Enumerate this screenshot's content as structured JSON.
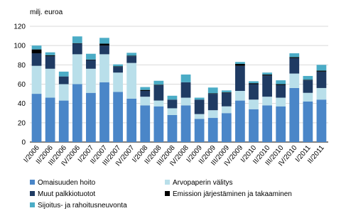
{
  "chart_data": {
    "type": "stacked-bar",
    "y_label": "milj. euroa",
    "categories": [
      "I/2006",
      "II/2006",
      "III/2006",
      "IV/2006",
      "I/2007",
      "II/2007",
      "III/2007",
      "IV/2007",
      "I/2008",
      "II/2008",
      "III/2008",
      "IV/2008",
      "I/2009",
      "II/2009",
      "III/2009",
      "IV/2009",
      "I/2010",
      "II/2010",
      "III/2010",
      "IV/2010",
      "I/2011",
      "II/2011"
    ],
    "series": [
      {
        "name": "Omaisuuden hoito",
        "color": "#4a86c8",
        "values": [
          50,
          46,
          43,
          60,
          51,
          62,
          52,
          45,
          38,
          37,
          28,
          38,
          24,
          25,
          30,
          43,
          34,
          38,
          37,
          56,
          42,
          44
        ]
      },
      {
        "name": "Arvopaperin välitys",
        "color": "#b9dfea",
        "values": [
          29,
          30,
          17,
          31,
          25,
          29,
          20,
          37,
          9,
          6,
          7,
          8,
          5,
          8,
          7,
          10,
          10,
          9,
          9,
          15,
          9,
          12
        ]
      },
      {
        "name": "Muut palkkiotuotot",
        "color": "#1f3b63",
        "values": [
          13,
          13,
          8,
          11,
          9,
          9,
          6,
          7,
          6,
          16,
          9,
          16,
          15,
          17,
          14,
          26,
          16,
          22,
          13,
          16,
          13,
          17
        ]
      },
      {
        "name": "Emission järjestäminen ja takaaminen",
        "color": "#000000",
        "values": [
          4,
          1,
          0,
          0.5,
          0.5,
          2,
          0.5,
          0.5,
          1,
          0.5,
          0,
          0,
          0,
          0.5,
          0.5,
          2,
          1,
          1,
          1,
          1,
          0.5,
          1
        ]
      },
      {
        "name": "Sijoitus- ja rahoitusneuvonta",
        "color": "#4bacc6",
        "values": [
          4,
          3,
          5,
          7,
          6,
          6,
          2,
          3,
          3,
          4,
          4,
          8,
          2,
          6,
          2,
          2,
          2,
          2,
          4,
          4,
          4,
          6
        ]
      }
    ],
    "ylim": [
      0,
      120
    ],
    "yticks": [
      0,
      20,
      40,
      60,
      80,
      100,
      120
    ],
    "grid": true
  }
}
